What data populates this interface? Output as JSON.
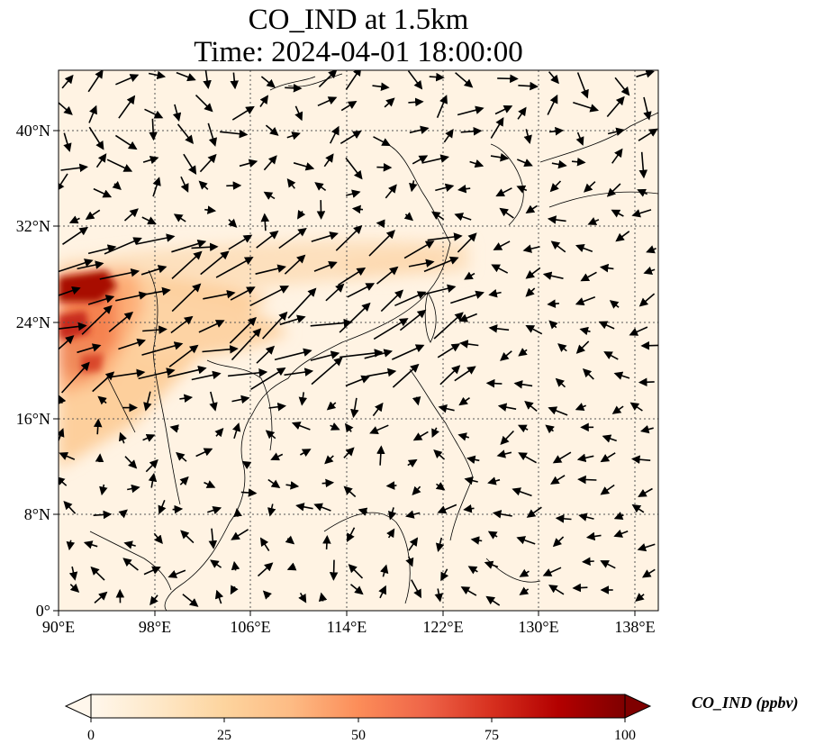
{
  "title_line1": "CO_IND at 1.5km",
  "title_line2": "Time: 2024-04-01 18:00:00",
  "lon_ticks": [
    "90°E",
    "98°E",
    "106°E",
    "114°E",
    "122°E",
    "130°E",
    "138°E"
  ],
  "lat_ticks": [
    "0°",
    "8°N",
    "16°N",
    "24°N",
    "32°N",
    "40°N"
  ],
  "lon_values": [
    90,
    98,
    106,
    114,
    122,
    130,
    138
  ],
  "lat_values": [
    0,
    8,
    16,
    24,
    32,
    40
  ],
  "colorbar": {
    "label": "CO_IND (ppbv)",
    "ticks": [
      "0",
      "25",
      "50",
      "75",
      "100"
    ],
    "colormap": "OrRd",
    "min": 0,
    "max": 100,
    "extend": "both"
  },
  "gridlines": "dotted"
}
